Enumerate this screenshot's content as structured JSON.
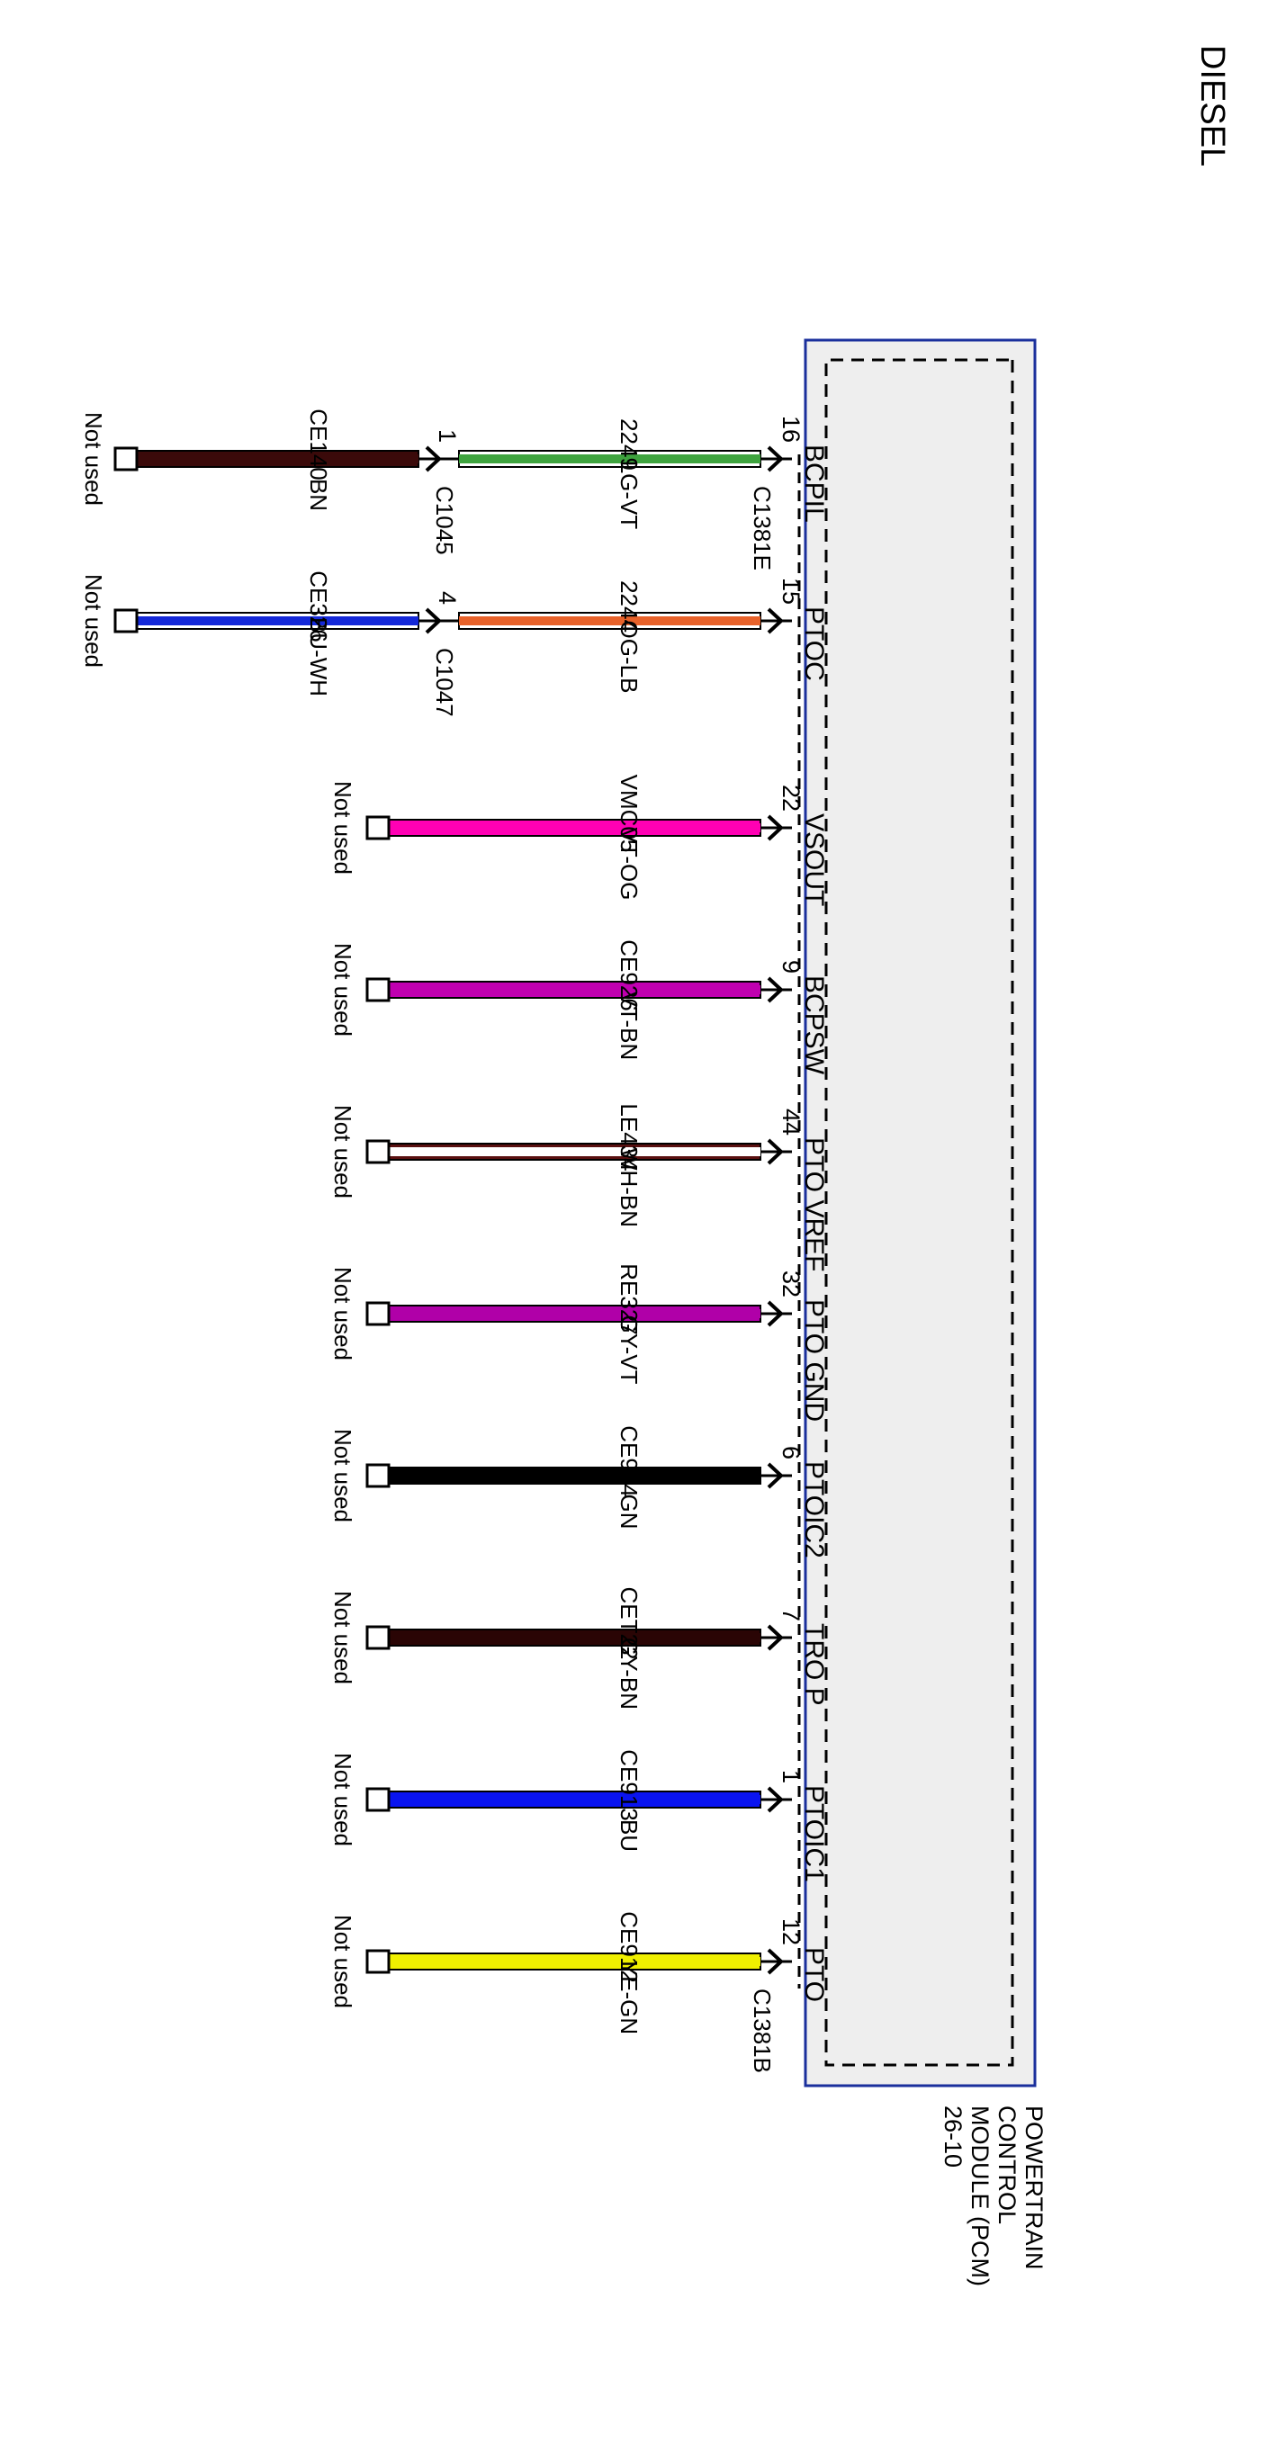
{
  "title": "DIESEL",
  "module": {
    "lines": [
      "POWERTRAIN",
      "CONTROL",
      "MODULE (PCM)",
      "26-10"
    ],
    "fill": "#eeeeee",
    "border": "#1a2f9c"
  },
  "connectors": {
    "c1381e": "C1381E",
    "c1381b": "C1381B",
    "c1045": "C1045",
    "c1047": "C1047"
  },
  "circuits": [
    {
      "signal": "BCPIL",
      "pin": "16",
      "circuit": "2249",
      "color_code": "LG-VT",
      "colors": [
        "#3ea33e",
        "#ffffff"
      ],
      "ext": {
        "pin": "1",
        "connector": "C1045",
        "circuit": "CE140",
        "color_code": "BN",
        "colors": [
          "#3b0a0a",
          "#3b0a0a"
        ]
      },
      "end_label": "Not used"
    },
    {
      "signal": "PTOC",
      "pin": "15",
      "circuit": "2244",
      "color_code": "OG-LB",
      "colors": [
        "#e8622a",
        "#ffffff"
      ],
      "ext": {
        "pin": "4",
        "connector": "C1047",
        "circuit": "CE326",
        "color_code": "BU-WH",
        "colors": [
          "#1428d8",
          "#ffffff"
        ]
      },
      "end_label": "Not used"
    },
    {
      "signal": "VSOUT",
      "pin": "22",
      "circuit": "VMC05",
      "color_code": "VT-OG",
      "colors": [
        "#ff00b4",
        "#ff00b4"
      ],
      "end_label": "Not used"
    },
    {
      "signal": "BCPSW",
      "pin": "9",
      "circuit": "CE926",
      "color_code": "VT-BN",
      "colors": [
        "#c000b0",
        "#c000b0"
      ],
      "end_label": "Not used"
    },
    {
      "signal": "PTO VREF",
      "pin": "44",
      "circuit": "LE434",
      "color_code": "WH-BN",
      "colors": [
        "#ffffff",
        "#5a1010"
      ],
      "end_label": "Not used"
    },
    {
      "signal": "PTO GND",
      "pin": "32",
      "circuit": "RE327",
      "color_code": "GY-VT",
      "colors": [
        "#b000a8",
        "#b000a8"
      ],
      "end_label": "Not used"
    },
    {
      "signal": "PTOIC2",
      "pin": "6",
      "circuit": "CE914",
      "color_code": "GN",
      "colors": [
        "#000000",
        "#000000"
      ],
      "end_label": "Not used"
    },
    {
      "signal": "TRO P",
      "pin": "7",
      "circuit": "CET22",
      "color_code": "GY-BN",
      "colors": [
        "#2a0505",
        "#2a0505"
      ],
      "end_label": "Not used"
    },
    {
      "signal": "PTOIC1",
      "pin": "1",
      "circuit": "CE913",
      "color_code": "BU",
      "colors": [
        "#0a14f0",
        "#0a14f0"
      ],
      "end_label": "Not used"
    },
    {
      "signal": "PTO",
      "pin": "12",
      "circuit": "CE912",
      "color_code": "YE-GN",
      "colors": [
        "#f0f000",
        "#f0f000"
      ],
      "end_label": "Not used"
    }
  ]
}
